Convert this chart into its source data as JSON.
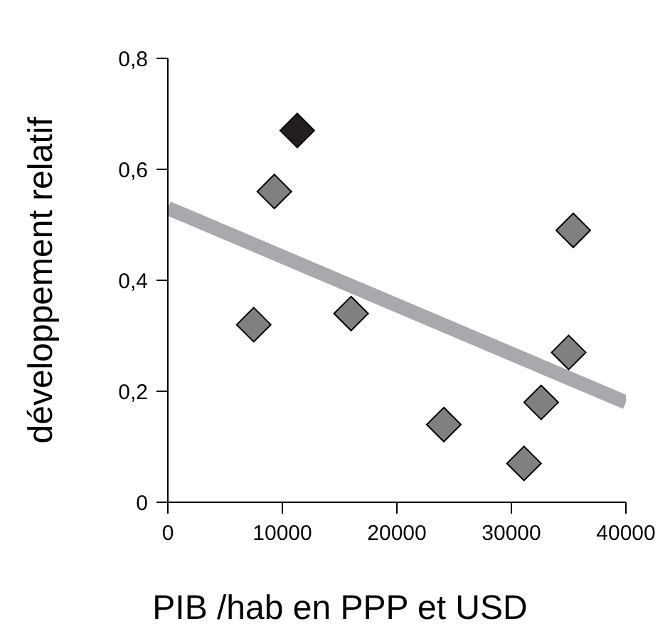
{
  "chart_data": {
    "type": "scatter",
    "xlabel": "PIB /hab en PPP et USD",
    "ylabel": "développement relatif",
    "xlim": [
      0,
      40000
    ],
    "xticks": [
      0,
      10000,
      20000,
      30000,
      40000
    ],
    "ylim": [
      0,
      0.8
    ],
    "yticks": [
      0,
      {
        "value": 0.2,
        "label": "0,2"
      },
      {
        "value": 0.4,
        "label": "0,4"
      },
      {
        "value": 0.6,
        "label": "0,6"
      },
      {
        "value": 0.8,
        "label": "0,8"
      }
    ],
    "grid": false,
    "legend": false,
    "marker": "diamond",
    "series": [
      {
        "type": "line",
        "marker": "none",
        "color": "#a7a9ac",
        "x": [
          0,
          40000
        ],
        "values": [
          0.53,
          0.18
        ]
      },
      {
        "color": "#808080",
        "x": [
          9300,
          35400,
          7500,
          16000,
          35000,
          32600,
          24100,
          31100
        ],
        "values": [
          0.56,
          0.49,
          0.32,
          0.34,
          0.27,
          0.18,
          0.14,
          0.07
        ]
      },
      {
        "color": "#231f20",
        "x": [
          11300
        ],
        "values": [
          0.67
        ]
      }
    ]
  }
}
